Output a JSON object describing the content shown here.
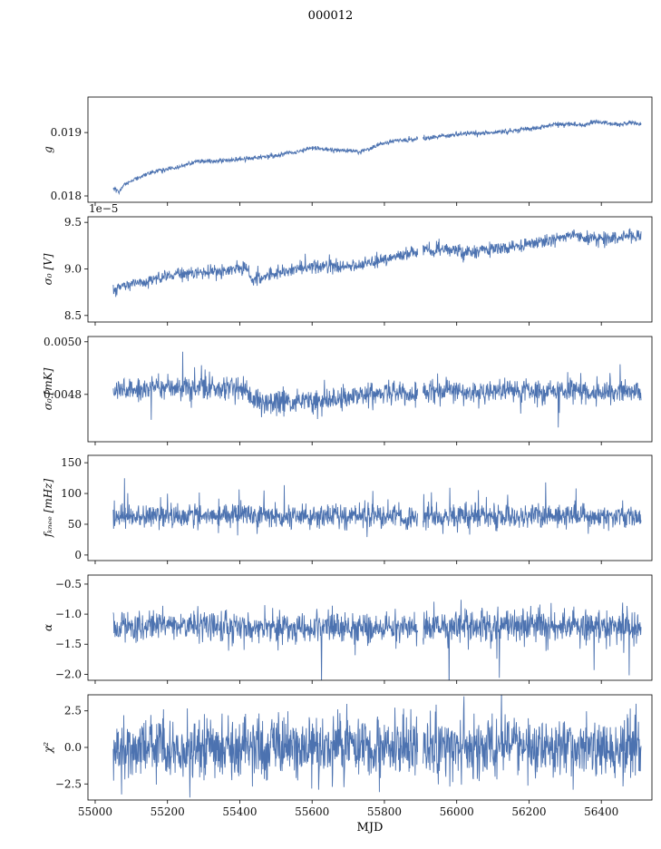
{
  "chart_data": {
    "type": "line",
    "title": "000012",
    "xlabel": "MJD",
    "line_color": "#4c72b0",
    "xlim": [
      54980,
      56540
    ],
    "xticks": [
      55000,
      55200,
      55400,
      55600,
      55800,
      56000,
      56200,
      56400
    ],
    "xtick_labels": [
      "55000",
      "55200",
      "55400",
      "55600",
      "55800",
      "56000",
      "56200",
      "56400"
    ],
    "x_start": 55050,
    "x_end": 56510,
    "x_step": 1,
    "gap": [
      55893,
      55906
    ],
    "legend": "none",
    "grid": false,
    "panels": [
      {
        "name": "g",
        "ylabel": "g",
        "offset_label": "",
        "ylim": [
          0.0179,
          0.01956
        ],
        "yticks": [
          0.018,
          0.019
        ],
        "ytick_labels": [
          "0.018",
          "0.019"
        ],
        "seed": 101,
        "noise_sd": 1.8e-05,
        "spike_prob": 0.01,
        "spike_amp": 2e-05,
        "spike_sign": 0,
        "trend": [
          [
            55050,
            0.01812
          ],
          [
            55065,
            0.01806
          ],
          [
            55080,
            0.01818
          ],
          [
            55120,
            0.0183
          ],
          [
            55160,
            0.01838
          ],
          [
            55200,
            0.01842
          ],
          [
            55230,
            0.01845
          ],
          [
            55260,
            0.01852
          ],
          [
            55290,
            0.01854
          ],
          [
            55320,
            0.01855
          ],
          [
            55360,
            0.01856
          ],
          [
            55400,
            0.01858
          ],
          [
            55440,
            0.0186
          ],
          [
            55480,
            0.01862
          ],
          [
            55520,
            0.01866
          ],
          [
            55560,
            0.0187
          ],
          [
            55600,
            0.01876
          ],
          [
            55630,
            0.01874
          ],
          [
            55660,
            0.01872
          ],
          [
            55700,
            0.01872
          ],
          [
            55730,
            0.01869
          ],
          [
            55760,
            0.01874
          ],
          [
            55790,
            0.01882
          ],
          [
            55820,
            0.01886
          ],
          [
            55850,
            0.01888
          ],
          [
            55880,
            0.01889
          ],
          [
            55910,
            0.01891
          ],
          [
            55950,
            0.01894
          ],
          [
            56000,
            0.01897
          ],
          [
            56040,
            0.01899
          ],
          [
            56080,
            0.01899
          ],
          [
            56120,
            0.01901
          ],
          [
            56160,
            0.01903
          ],
          [
            56200,
            0.01906
          ],
          [
            56240,
            0.01909
          ],
          [
            56280,
            0.01913
          ],
          [
            56320,
            0.01914
          ],
          [
            56350,
            0.01911
          ],
          [
            56380,
            0.01917
          ],
          [
            56420,
            0.01915
          ],
          [
            56450,
            0.01912
          ],
          [
            56480,
            0.01916
          ],
          [
            56510,
            0.01914
          ]
        ]
      },
      {
        "name": "sigma0-v",
        "ylabel": "σ₀ [V]",
        "offset_label": "1e−5",
        "ylim": [
          8.43,
          9.56
        ],
        "yticks": [
          8.5,
          9.0,
          9.5
        ],
        "ytick_labels": [
          "8.5",
          "9.0",
          "9.5"
        ],
        "seed": 202,
        "noise_sd": 0.035,
        "spike_prob": 0.03,
        "spike_amp": 0.03,
        "spike_sign": 0,
        "trend": [
          [
            55050,
            8.76
          ],
          [
            55080,
            8.82
          ],
          [
            55120,
            8.86
          ],
          [
            55160,
            8.88
          ],
          [
            55200,
            8.93
          ],
          [
            55240,
            8.94
          ],
          [
            55280,
            8.95
          ],
          [
            55320,
            8.97
          ],
          [
            55360,
            8.98
          ],
          [
            55400,
            9.0
          ],
          [
            55425,
            9.01
          ],
          [
            55430,
            8.88
          ],
          [
            55470,
            8.92
          ],
          [
            55510,
            8.96
          ],
          [
            55550,
            9.0
          ],
          [
            55590,
            9.02
          ],
          [
            55630,
            9.03
          ],
          [
            55670,
            9.03
          ],
          [
            55710,
            9.04
          ],
          [
            55750,
            9.06
          ],
          [
            55790,
            9.1
          ],
          [
            55830,
            9.13
          ],
          [
            55870,
            9.16
          ],
          [
            55910,
            9.18
          ],
          [
            55950,
            9.2
          ],
          [
            55990,
            9.21
          ],
          [
            56030,
            9.19
          ],
          [
            56070,
            9.2
          ],
          [
            56110,
            9.22
          ],
          [
            56150,
            9.23
          ],
          [
            56190,
            9.26
          ],
          [
            56230,
            9.29
          ],
          [
            56270,
            9.32
          ],
          [
            56310,
            9.36
          ],
          [
            56350,
            9.34
          ],
          [
            56390,
            9.31
          ],
          [
            56430,
            9.33
          ],
          [
            56470,
            9.36
          ],
          [
            56510,
            9.36
          ]
        ]
      },
      {
        "name": "sigma0-mk",
        "ylabel": "σ₀ [mK]",
        "offset_label": "",
        "ylim": [
          0.00462,
          0.00502
        ],
        "yticks": [
          0.0048,
          0.005
        ],
        "ytick_labels": [
          "0.0048",
          "0.0050"
        ],
        "seed": 303,
        "noise_sd": 2.2e-05,
        "spike_prob": 0.04,
        "spike_amp": 2.2e-05,
        "spike_sign": 0,
        "trend": [
          [
            55050,
            0.00482
          ],
          [
            55150,
            0.00482
          ],
          [
            55230,
            0.00483
          ],
          [
            55300,
            0.00482
          ],
          [
            55420,
            0.00482
          ],
          [
            55432,
            0.00477
          ],
          [
            55550,
            0.00477
          ],
          [
            55620,
            0.00478
          ],
          [
            55680,
            0.00479
          ],
          [
            55750,
            0.0048
          ],
          [
            55820,
            0.0048
          ],
          [
            55900,
            0.00481
          ],
          [
            56000,
            0.00481
          ],
          [
            56100,
            0.00481
          ],
          [
            56250,
            0.00481
          ],
          [
            56400,
            0.00481
          ],
          [
            56510,
            0.00481
          ]
        ]
      },
      {
        "name": "fknee",
        "ylabel": "fₖₙₑₑ [mHz]",
        "offset_label": "",
        "ylim": [
          -9,
          162
        ],
        "yticks": [
          0,
          50,
          100,
          150
        ],
        "ytick_labels": [
          "0",
          "50",
          "100",
          "150"
        ],
        "seed": 404,
        "noise_sd": 10,
        "spike_prob": 0.025,
        "spike_amp": 16,
        "spike_sign": 1,
        "trend": [
          [
            55050,
            62
          ],
          [
            55400,
            66
          ],
          [
            55450,
            64
          ],
          [
            55800,
            62
          ],
          [
            56510,
            63
          ]
        ]
      },
      {
        "name": "alpha",
        "ylabel": "α",
        "offset_label": "",
        "ylim": [
          -2.1,
          -0.35
        ],
        "yticks": [
          -2.0,
          -1.5,
          -1.0,
          -0.5
        ],
        "ytick_labels": [
          "−2.0",
          "−1.5",
          "−1.0",
          "−0.5"
        ],
        "seed": 505,
        "noise_sd": 0.13,
        "spike_prob": 0.02,
        "spike_amp": 0.22,
        "spike_sign": -1,
        "trend": [
          [
            55050,
            -1.2
          ],
          [
            55300,
            -1.18
          ],
          [
            55500,
            -1.25
          ],
          [
            55700,
            -1.2
          ],
          [
            55900,
            -1.22
          ],
          [
            56100,
            -1.18
          ],
          [
            56300,
            -1.2
          ],
          [
            56510,
            -1.2
          ]
        ]
      },
      {
        "name": "chi2",
        "ylabel": "χ²",
        "offset_label": "",
        "ylim": [
          -3.6,
          3.6
        ],
        "yticks": [
          -2.5,
          0.0,
          2.5
        ],
        "ytick_labels": [
          "−2.5",
          "0.0",
          "2.5"
        ],
        "seed": 606,
        "noise_sd": 1.05,
        "spike_prob": 0.01,
        "spike_amp": 0.5,
        "spike_sign": 0,
        "trend": [
          [
            55050,
            0
          ],
          [
            56510,
            0
          ]
        ]
      }
    ]
  }
}
